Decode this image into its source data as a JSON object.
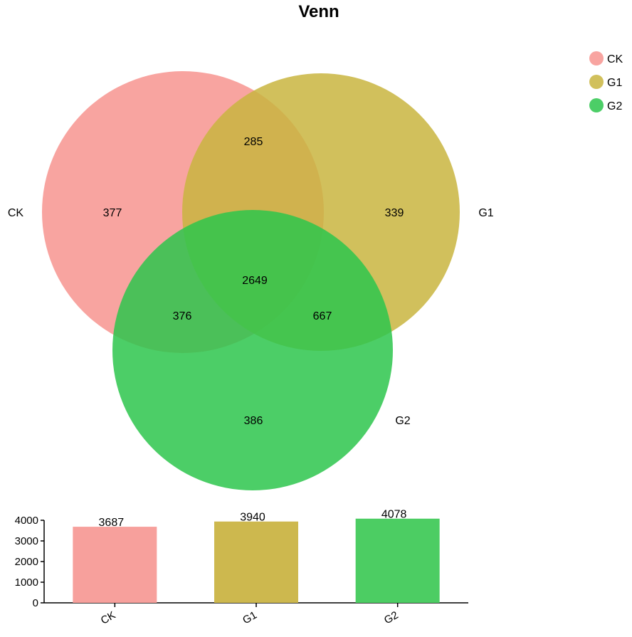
{
  "chart_data": [
    {
      "type": "venn",
      "title": "Venn",
      "sets": [
        {
          "name": "CK",
          "color": "#f7948f"
        },
        {
          "name": "G1",
          "color": "#c9b53f"
        },
        {
          "name": "G2",
          "color": "#2dc54c"
        }
      ],
      "regions": [
        {
          "sets": [
            "CK"
          ],
          "value": 377
        },
        {
          "sets": [
            "G1"
          ],
          "value": 339
        },
        {
          "sets": [
            "G2"
          ],
          "value": 386
        },
        {
          "sets": [
            "CK",
            "G1"
          ],
          "value": 285
        },
        {
          "sets": [
            "CK",
            "G2"
          ],
          "value": 376
        },
        {
          "sets": [
            "G1",
            "G2"
          ],
          "value": 667
        },
        {
          "sets": [
            "CK",
            "G1",
            "G2"
          ],
          "value": 2649
        }
      ],
      "legend": "top-right"
    },
    {
      "type": "bar",
      "categories": [
        "CK",
        "G1",
        "G2"
      ],
      "values": [
        3687,
        3940,
        4078
      ],
      "colors": [
        "#f7a09c",
        "#cdb84e",
        "#4ccd63"
      ],
      "ylim": [
        0,
        4000
      ],
      "yticks": [
        "0",
        "1000",
        "2000",
        "3000",
        "4000"
      ]
    }
  ]
}
